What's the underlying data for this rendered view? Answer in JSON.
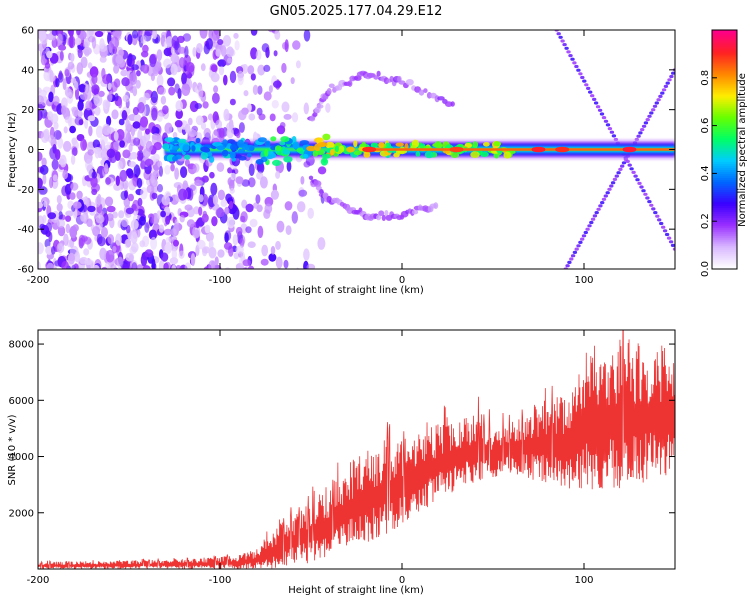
{
  "title": "GN05.2025.177.04.29.E12",
  "chart_data": [
    {
      "type": "heatmap",
      "xlabel": "Height of straight line (km)",
      "ylabel": "Frequency (Hz)",
      "xlim": [
        -200,
        150
      ],
      "ylim": [
        -60,
        60
      ],
      "xticks": [
        "-200",
        "-100",
        "0",
        "100"
      ],
      "yticks": [
        "60",
        "40",
        "20",
        "0",
        "-20",
        "-40",
        "-60"
      ],
      "colorbar": {
        "label": "Normalized spectral amplitude",
        "range": [
          0,
          1
        ],
        "ticks": [
          "0.0",
          "0.2",
          "0.4",
          "0.6",
          "0.8"
        ],
        "colors": [
          "#ffffff",
          "#d9b8ff",
          "#9a30ff",
          "#3a00ff",
          "#0066ff",
          "#00ccff",
          "#00ff66",
          "#66ff00",
          "#ffee00",
          "#ff8800",
          "#ff2222",
          "#ff0088"
        ]
      },
      "features": [
        {
          "name": "noise",
          "x_range": [
            -200,
            -80
          ],
          "f_range": [
            -60,
            60
          ],
          "level": 0.25
        },
        {
          "name": "carrier",
          "x_range": [
            -130,
            150
          ],
          "f": 0,
          "level": 0.85
        },
        {
          "name": "sideband_upper",
          "points": [
            [
              -50,
              15
            ],
            [
              -40,
              30
            ],
            [
              -20,
              38
            ],
            [
              0,
              34
            ],
            [
              30,
              22
            ]
          ],
          "level": 0.2
        },
        {
          "name": "sideband_lower",
          "points": [
            [
              -50,
              -15
            ],
            [
              -40,
              -25
            ],
            [
              -20,
              -33
            ],
            [
              0,
              -33
            ],
            [
              20,
              -28
            ]
          ],
          "level": 0.2
        },
        {
          "name": "cross_line_1",
          "points": [
            [
              85,
              60
            ],
            [
              150,
              -50
            ]
          ],
          "level": 0.3
        },
        {
          "name": "cross_line_2",
          "points": [
            [
              90,
              -60
            ],
            [
              150,
              40
            ]
          ],
          "level": 0.3
        }
      ]
    },
    {
      "type": "line",
      "xlabel": "Height of straight line (km)",
      "ylabel": "SNR (10 * v/v)",
      "xlim": [
        -200,
        150
      ],
      "ylim": [
        0,
        8500
      ],
      "xticks": [
        "-200",
        "-100",
        "0",
        "100"
      ],
      "yticks": [
        "2000",
        "4000",
        "6000",
        "8000"
      ],
      "color": "#ee3333",
      "envelope": {
        "x": [
          -200,
          -150,
          -110,
          -90,
          -80,
          -70,
          -60,
          -50,
          -40,
          -30,
          -20,
          -10,
          0,
          10,
          20,
          30,
          40,
          50,
          60,
          70,
          80,
          90,
          100,
          110,
          120,
          130,
          140,
          150
        ],
        "low": [
          0,
          0,
          0,
          0,
          0,
          0,
          100,
          200,
          400,
          700,
          900,
          1200,
          1500,
          2000,
          2500,
          2800,
          3000,
          3200,
          3400,
          3200,
          3000,
          2800,
          2800,
          2800,
          2800,
          3000,
          3200,
          3200
        ],
        "high": [
          250,
          300,
          400,
          500,
          700,
          1500,
          2000,
          2500,
          3000,
          3800,
          4200,
          4600,
          4600,
          4800,
          5200,
          5400,
          5600,
          5000,
          5200,
          5800,
          6100,
          6200,
          7800,
          8200,
          8300,
          8200,
          8000,
          7800
        ]
      }
    }
  ]
}
